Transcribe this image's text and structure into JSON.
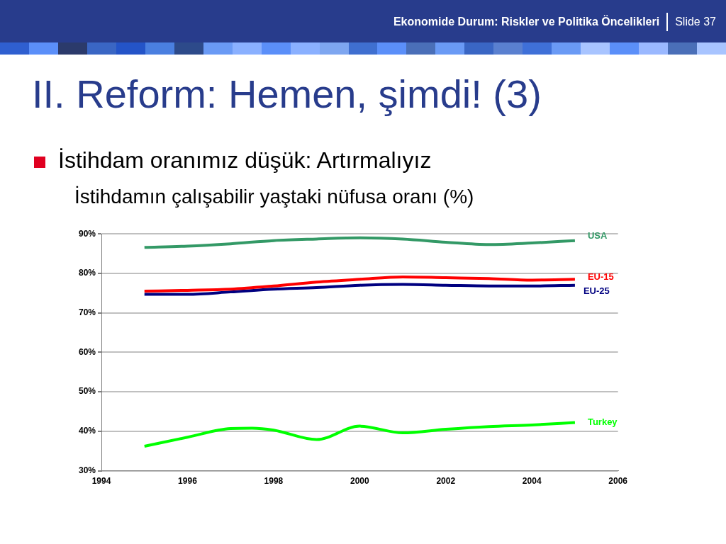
{
  "chart_data": {
    "type": "line",
    "title": "II. Reform: Hemen, şimdi! (3)",
    "subtitle": "İstihdam oranımız düşük: Artırmalıyız",
    "ylabel": "İstihdamın çalışabilir yaştaki nüfusa oranı (%)",
    "annotations": [
      "Ekonomide Durum: Riskler ve Politika Öncelikleri",
      "Slide 37"
    ],
    "x": [
      1995,
      1996,
      1997,
      1998,
      1999,
      2000,
      2001,
      2002,
      2003,
      2004,
      2005
    ],
    "series": [
      {
        "name": "USA",
        "color": "#339966",
        "values": [
          86.6,
          86.9,
          87.5,
          88.3,
          88.7,
          89.0,
          88.7,
          87.9,
          87.3,
          87.7,
          88.3
        ]
      },
      {
        "name": "EU-15",
        "color": "#ff0000",
        "values": [
          75.5,
          75.7,
          76.0,
          76.8,
          77.8,
          78.5,
          79.1,
          78.9,
          78.7,
          78.3,
          78.5
        ]
      },
      {
        "name": "EU-25",
        "color": "#000080",
        "values": [
          74.7,
          74.7,
          75.3,
          76.0,
          76.4,
          77.0,
          77.2,
          77.0,
          76.8,
          76.8,
          77.0
        ]
      },
      {
        "name": "Turkey",
        "color": "#00ff00",
        "x": [
          1995,
          1996,
          1997,
          1997.5,
          1998,
          1999,
          2000,
          2001,
          2002,
          2003,
          2004,
          2005
        ],
        "values": [
          36.2,
          38.5,
          40.7,
          40.8,
          40.3,
          37.9,
          41.3,
          39.6,
          40.5,
          41.2,
          41.6,
          42.2
        ]
      }
    ],
    "xlim": [
      1994,
      2006
    ],
    "xticks": [
      1994,
      1996,
      1998,
      2000,
      2002,
      2004,
      2006
    ],
    "ylim": [
      30,
      90
    ],
    "yticks": [
      {
        "value": 30,
        "label": "30%"
      },
      {
        "value": 40,
        "label": "40%"
      },
      {
        "value": 50,
        "label": "50%"
      },
      {
        "value": 60,
        "label": "60%"
      },
      {
        "value": 70,
        "label": "70%"
      },
      {
        "value": 80,
        "label": "80%"
      },
      {
        "value": 90,
        "label": "90%"
      }
    ],
    "grid": "y",
    "legend": false,
    "marker": "none",
    "line_style": "solid"
  }
}
